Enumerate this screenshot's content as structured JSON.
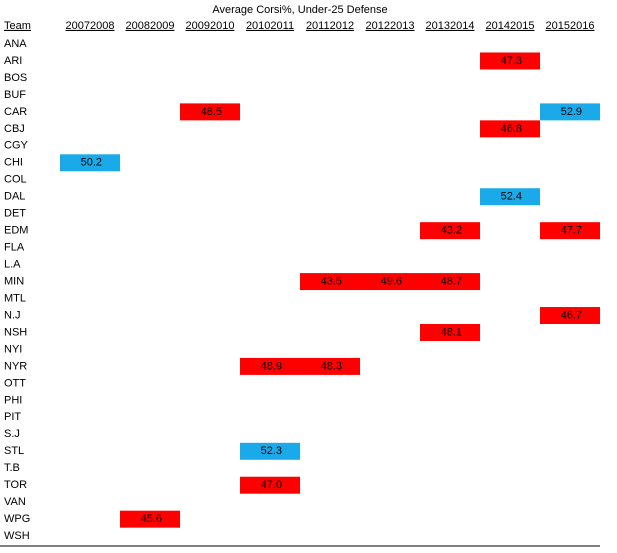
{
  "title": "Average Corsi%, Under-25 Defense",
  "table": {
    "header": [
      "Team",
      "20072008",
      "20082009",
      "20092010",
      "20102011",
      "20112012",
      "20122013",
      "20132014",
      "20142015",
      "20152016"
    ],
    "rows": [
      {
        "team": "ANA",
        "cells": [
          null,
          null,
          null,
          null,
          null,
          null,
          null,
          null,
          null
        ]
      },
      {
        "team": "ARI",
        "cells": [
          null,
          null,
          null,
          null,
          null,
          null,
          null,
          {
            "text": "47.3",
            "color": "#ff0000"
          },
          null
        ]
      },
      {
        "team": "BOS",
        "cells": [
          null,
          null,
          null,
          null,
          null,
          null,
          null,
          null,
          null
        ]
      },
      {
        "team": "BUF",
        "cells": [
          null,
          null,
          null,
          null,
          null,
          null,
          null,
          null,
          null
        ]
      },
      {
        "team": "CAR",
        "cells": [
          null,
          null,
          {
            "text": "48.5",
            "color": "#ff0000"
          },
          null,
          null,
          null,
          null,
          null,
          {
            "text": "52.9",
            "color": "#1aaaea"
          }
        ]
      },
      {
        "team": "CBJ",
        "cells": [
          null,
          null,
          null,
          null,
          null,
          null,
          null,
          {
            "text": "46.8",
            "color": "#ff0000"
          },
          null
        ]
      },
      {
        "team": "CGY",
        "cells": [
          null,
          null,
          null,
          null,
          null,
          null,
          null,
          null,
          null
        ]
      },
      {
        "team": "CHI",
        "cells": [
          {
            "text": "50.2",
            "color": "#1aaaea"
          },
          null,
          null,
          null,
          null,
          null,
          null,
          null,
          null
        ]
      },
      {
        "team": "COL",
        "cells": [
          null,
          null,
          null,
          null,
          null,
          null,
          null,
          null,
          null
        ]
      },
      {
        "team": "DAL",
        "cells": [
          null,
          null,
          null,
          null,
          null,
          null,
          null,
          {
            "text": "52.4",
            "color": "#1aaaea"
          },
          null
        ]
      },
      {
        "team": "DET",
        "cells": [
          null,
          null,
          null,
          null,
          null,
          null,
          null,
          null,
          null
        ]
      },
      {
        "team": "EDM",
        "cells": [
          null,
          null,
          null,
          null,
          null,
          null,
          {
            "text": "43.2",
            "color": "#ff0000"
          },
          null,
          {
            "text": "47.7",
            "color": "#ff0000"
          }
        ]
      },
      {
        "team": "FLA",
        "cells": [
          null,
          null,
          null,
          null,
          null,
          null,
          null,
          null,
          null
        ]
      },
      {
        "team": "L.A",
        "cells": [
          null,
          null,
          null,
          null,
          null,
          null,
          null,
          null,
          null
        ]
      },
      {
        "team": "MIN",
        "cells": [
          null,
          null,
          null,
          null,
          {
            "text": "43.5",
            "color": "#ff0000"
          },
          {
            "text": "49.6",
            "color": "#ff0000"
          },
          {
            "text": "48.7",
            "color": "#ff0000"
          },
          null,
          null
        ]
      },
      {
        "team": "MTL",
        "cells": [
          null,
          null,
          null,
          null,
          null,
          null,
          null,
          null,
          null
        ]
      },
      {
        "team": "N.J",
        "cells": [
          null,
          null,
          null,
          null,
          null,
          null,
          null,
          null,
          {
            "text": "46.7",
            "color": "#ff0000"
          }
        ]
      },
      {
        "team": "NSH",
        "cells": [
          null,
          null,
          null,
          null,
          null,
          null,
          {
            "text": "48.1",
            "color": "#ff0000"
          },
          null,
          null
        ]
      },
      {
        "team": "NYI",
        "cells": [
          null,
          null,
          null,
          null,
          null,
          null,
          null,
          null,
          null
        ]
      },
      {
        "team": "NYR",
        "cells": [
          null,
          null,
          null,
          {
            "text": "48.9",
            "color": "#ff0000"
          },
          {
            "text": "48.3",
            "color": "#ff0000"
          },
          null,
          null,
          null,
          null
        ]
      },
      {
        "team": "OTT",
        "cells": [
          null,
          null,
          null,
          null,
          null,
          null,
          null,
          null,
          null
        ]
      },
      {
        "team": "PHI",
        "cells": [
          null,
          null,
          null,
          null,
          null,
          null,
          null,
          null,
          null
        ]
      },
      {
        "team": "PIT",
        "cells": [
          null,
          null,
          null,
          null,
          null,
          null,
          null,
          null,
          null
        ]
      },
      {
        "team": "S.J",
        "cells": [
          null,
          null,
          null,
          null,
          null,
          null,
          null,
          null,
          null
        ]
      },
      {
        "team": "STL",
        "cells": [
          null,
          null,
          null,
          {
            "text": "52.3",
            "color": "#1aaaea"
          },
          null,
          null,
          null,
          null,
          null
        ]
      },
      {
        "team": "T.B",
        "cells": [
          null,
          null,
          null,
          null,
          null,
          null,
          null,
          null,
          null
        ]
      },
      {
        "team": "TOR",
        "cells": [
          null,
          null,
          null,
          {
            "text": "47.0",
            "color": "#ff0000"
          },
          null,
          null,
          null,
          null,
          null
        ]
      },
      {
        "team": "VAN",
        "cells": [
          null,
          null,
          null,
          null,
          null,
          null,
          null,
          null,
          null
        ]
      },
      {
        "team": "WPG",
        "cells": [
          null,
          {
            "text": "45.6",
            "color": "#ff0000"
          },
          null,
          null,
          null,
          null,
          null,
          null,
          null
        ]
      },
      {
        "team": "WSH",
        "cells": [
          null,
          null,
          null,
          null,
          null,
          null,
          null,
          null,
          null
        ]
      }
    ]
  }
}
